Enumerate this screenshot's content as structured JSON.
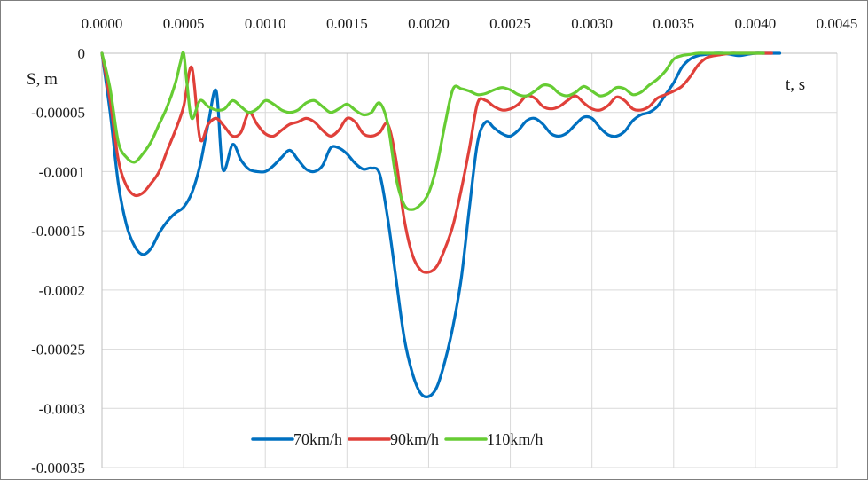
{
  "chart_data": {
    "type": "line",
    "title": "",
    "xlabel": "t, s",
    "ylabel": "S, m",
    "xlim": [
      0,
      0.0045
    ],
    "ylim": [
      -0.00035,
      0
    ],
    "grid": true,
    "legend_position": "bottom-center",
    "x_ticks": [
      {
        "value": 0,
        "label": "0.0000"
      },
      {
        "value": 0.0005,
        "label": "0.0005"
      },
      {
        "value": 0.001,
        "label": "0.0010"
      },
      {
        "value": 0.0015,
        "label": "0.0015"
      },
      {
        "value": 0.002,
        "label": "0.0020"
      },
      {
        "value": 0.0025,
        "label": "0.0025"
      },
      {
        "value": 0.003,
        "label": "0.0030"
      },
      {
        "value": 0.0035,
        "label": "0.0035"
      },
      {
        "value": 0.004,
        "label": "0.0040"
      },
      {
        "value": 0.0045,
        "label": "0.0045"
      }
    ],
    "y_ticks": [
      {
        "value": 0,
        "label": "0"
      },
      {
        "value": -5e-05,
        "label": "-0.00005"
      },
      {
        "value": -0.0001,
        "label": "-0.0001"
      },
      {
        "value": -0.00015,
        "label": "-0.00015"
      },
      {
        "value": -0.0002,
        "label": "-0.0002"
      },
      {
        "value": -0.00025,
        "label": "-0.00025"
      },
      {
        "value": -0.0003,
        "label": "-0.0003"
      },
      {
        "value": -0.00035,
        "label": "-0.00035"
      }
    ],
    "series": [
      {
        "name": "70km/h",
        "color": "#0070c0",
        "x": [
          0.0,
          5e-05,
          0.0001,
          0.00015,
          0.0002,
          0.00025,
          0.0003,
          0.00035,
          0.0004,
          0.00045,
          0.0005,
          0.00055,
          0.0006,
          0.00065,
          0.0007,
          0.00074,
          0.0008,
          0.00085,
          0.0009,
          0.00095,
          0.001,
          0.00105,
          0.0011,
          0.00115,
          0.0012,
          0.00125,
          0.0013,
          0.00135,
          0.0014,
          0.00145,
          0.0015,
          0.00155,
          0.0016,
          0.00165,
          0.0017,
          0.00175,
          0.0018,
          0.00185,
          0.0019,
          0.00195,
          0.002,
          0.00205,
          0.0021,
          0.00215,
          0.0022,
          0.00225,
          0.0023,
          0.00235,
          0.0024,
          0.00245,
          0.0025,
          0.00255,
          0.0026,
          0.00265,
          0.0027,
          0.00275,
          0.0028,
          0.00285,
          0.0029,
          0.00295,
          0.003,
          0.00305,
          0.0031,
          0.00315,
          0.0032,
          0.00325,
          0.0033,
          0.00335,
          0.0034,
          0.00345,
          0.0035,
          0.00355,
          0.0036,
          0.00365,
          0.0037,
          0.00375,
          0.0038,
          0.00385,
          0.0039,
          0.00395,
          0.004,
          0.00405,
          0.0041,
          0.00415
        ],
        "y": [
          0.0,
          -5e-05,
          -0.00011,
          -0.000145,
          -0.000163,
          -0.00017,
          -0.000165,
          -0.000152,
          -0.000142,
          -0.000135,
          -0.00013,
          -0.000118,
          -9.5e-05,
          -6e-05,
          -3.2e-05,
          -9.8e-05,
          -7.7e-05,
          -9e-05,
          -9.8e-05,
          -0.0001,
          -0.0001,
          -9.5e-05,
          -8.8e-05,
          -8.2e-05,
          -9e-05,
          -9.8e-05,
          -0.0001,
          -9.5e-05,
          -8e-05,
          -8e-05,
          -8.5e-05,
          -9.3e-05,
          -9.8e-05,
          -9.7e-05,
          -0.000102,
          -0.00014,
          -0.00019,
          -0.00024,
          -0.00027,
          -0.000287,
          -0.00029,
          -0.000282,
          -0.00026,
          -0.00023,
          -0.00019,
          -0.00013,
          -7.5e-05,
          -5.8e-05,
          -6.3e-05,
          -6.8e-05,
          -7e-05,
          -6.5e-05,
          -5.7e-05,
          -5.5e-05,
          -6e-05,
          -6.8e-05,
          -7e-05,
          -6.7e-05,
          -6e-05,
          -5.4e-05,
          -5.5e-05,
          -6.3e-05,
          -6.9e-05,
          -7e-05,
          -6.6e-05,
          -5.7e-05,
          -5.2e-05,
          -5e-05,
          -4.5e-05,
          -3.5e-05,
          -2.5e-05,
          -1.2e-05,
          -5e-06,
          -2e-06,
          -1e-06,
          0.0,
          0.0,
          -1e-06,
          -2e-06,
          -1e-06,
          0.0,
          0.0,
          0.0,
          0.0
        ]
      },
      {
        "name": "90km/h",
        "color": "#e0403a",
        "x": [
          0.0,
          5e-05,
          0.0001,
          0.00015,
          0.0002,
          0.00025,
          0.0003,
          0.00035,
          0.0004,
          0.00045,
          0.0005,
          0.00055,
          0.0006,
          0.00065,
          0.0007,
          0.00075,
          0.0008,
          0.00085,
          0.0009,
          0.00095,
          0.001,
          0.00105,
          0.0011,
          0.00115,
          0.0012,
          0.00125,
          0.0013,
          0.00135,
          0.0014,
          0.00145,
          0.0015,
          0.00155,
          0.0016,
          0.00165,
          0.0017,
          0.00175,
          0.0018,
          0.00185,
          0.0019,
          0.00195,
          0.002,
          0.00205,
          0.0021,
          0.00215,
          0.0022,
          0.00225,
          0.0023,
          0.00235,
          0.0024,
          0.00245,
          0.0025,
          0.00255,
          0.0026,
          0.00265,
          0.0027,
          0.00275,
          0.0028,
          0.00285,
          0.0029,
          0.00295,
          0.003,
          0.00305,
          0.0031,
          0.00315,
          0.0032,
          0.00325,
          0.0033,
          0.00335,
          0.0034,
          0.00345,
          0.0035,
          0.00355,
          0.0036,
          0.00365,
          0.0037,
          0.00375,
          0.0038,
          0.00385,
          0.0039,
          0.00395,
          0.004,
          0.00405,
          0.0041
        ],
        "y": [
          0.0,
          -4e-05,
          -9e-05,
          -0.000112,
          -0.00012,
          -0.000118,
          -0.00011,
          -0.0001,
          -8.2e-05,
          -6.5e-05,
          -4.5e-05,
          -1.2e-05,
          -7.2e-05,
          -6e-05,
          -5.5e-05,
          -6.2e-05,
          -7e-05,
          -6.7e-05,
          -5e-05,
          -6e-05,
          -6.8e-05,
          -7e-05,
          -6.5e-05,
          -6e-05,
          -5.8e-05,
          -5.5e-05,
          -5.8e-05,
          -6.5e-05,
          -7e-05,
          -6.5e-05,
          -5.5e-05,
          -5.8e-05,
          -6.8e-05,
          -7e-05,
          -6.7e-05,
          -6e-05,
          -9e-05,
          -0.00014,
          -0.00017,
          -0.000183,
          -0.000185,
          -0.00018,
          -0.000165,
          -0.000145,
          -0.000115,
          -8e-05,
          -4.2e-05,
          -4e-05,
          -4.5e-05,
          -4.8e-05,
          -4.7e-05,
          -4.3e-05,
          -3.6e-05,
          -3.8e-05,
          -4.5e-05,
          -4.7e-05,
          -4.5e-05,
          -4e-05,
          -3.6e-05,
          -4.2e-05,
          -4.7e-05,
          -4.8e-05,
          -4.4e-05,
          -3.7e-05,
          -4e-05,
          -4.7e-05,
          -4.8e-05,
          -4.5e-05,
          -3.8e-05,
          -3.5e-05,
          -3.2e-05,
          -2.8e-05,
          -2e-05,
          -1e-05,
          -4e-06,
          -2e-06,
          -1e-06,
          0.0,
          0.0,
          0.0,
          0.0,
          0.0,
          0.0
        ]
      },
      {
        "name": "110km/h",
        "color": "#66cc33",
        "x": [
          0.0,
          5e-05,
          0.0001,
          0.00015,
          0.0002,
          0.00025,
          0.0003,
          0.00035,
          0.0004,
          0.00045,
          0.00048,
          0.0005,
          0.00052,
          0.00055,
          0.0006,
          0.00065,
          0.0007,
          0.00075,
          0.0008,
          0.00085,
          0.0009,
          0.00095,
          0.001,
          0.00105,
          0.0011,
          0.00115,
          0.0012,
          0.00125,
          0.0013,
          0.00135,
          0.0014,
          0.00145,
          0.0015,
          0.00155,
          0.0016,
          0.00165,
          0.0017,
          0.00175,
          0.0018,
          0.00185,
          0.0019,
          0.00195,
          0.002,
          0.00205,
          0.0021,
          0.00215,
          0.0022,
          0.00225,
          0.0023,
          0.00235,
          0.0024,
          0.00245,
          0.0025,
          0.00255,
          0.0026,
          0.00265,
          0.0027,
          0.00275,
          0.0028,
          0.00285,
          0.0029,
          0.00295,
          0.003,
          0.00305,
          0.0031,
          0.00315,
          0.0032,
          0.00325,
          0.0033,
          0.00335,
          0.0034,
          0.00345,
          0.0035,
          0.00355,
          0.0036,
          0.00365,
          0.0037,
          0.00375,
          0.0038,
          0.00385,
          0.0039,
          0.00395,
          0.004,
          0.00405
        ],
        "y": [
          0.0,
          -3e-05,
          -7.5e-05,
          -8.8e-05,
          -9.2e-05,
          -8.5e-05,
          -7.5e-05,
          -6e-05,
          -4.5e-05,
          -2.5e-05,
          -8e-06,
          0.0,
          -2.5e-05,
          -5.5e-05,
          -4e-05,
          -4.5e-05,
          -4.8e-05,
          -4.7e-05,
          -4e-05,
          -4.5e-05,
          -5e-05,
          -4.7e-05,
          -4e-05,
          -4.3e-05,
          -4.8e-05,
          -5e-05,
          -4.8e-05,
          -4.2e-05,
          -4e-05,
          -4.5e-05,
          -5e-05,
          -4.7e-05,
          -4.3e-05,
          -4.8e-05,
          -5.2e-05,
          -5e-05,
          -4.2e-05,
          -6e-05,
          -0.000105,
          -0.000128,
          -0.000132,
          -0.000128,
          -0.000118,
          -9.5e-05,
          -6e-05,
          -3e-05,
          -3e-05,
          -3.2e-05,
          -3.5e-05,
          -3.4e-05,
          -3.1e-05,
          -2.9e-05,
          -3.1e-05,
          -3.5e-05,
          -3.6e-05,
          -3.2e-05,
          -2.7e-05,
          -2.8e-05,
          -3.4e-05,
          -3.6e-05,
          -3.3e-05,
          -2.8e-05,
          -3.2e-05,
          -3.6e-05,
          -3.4e-05,
          -2.9e-05,
          -3e-05,
          -3.5e-05,
          -3.3e-05,
          -2.7e-05,
          -2.2e-05,
          -1.5e-05,
          -5e-06,
          -2e-06,
          -1e-06,
          0.0,
          0.0,
          0.0,
          0.0,
          0.0,
          0.0,
          0.0,
          0.0,
          0.0
        ]
      }
    ]
  }
}
